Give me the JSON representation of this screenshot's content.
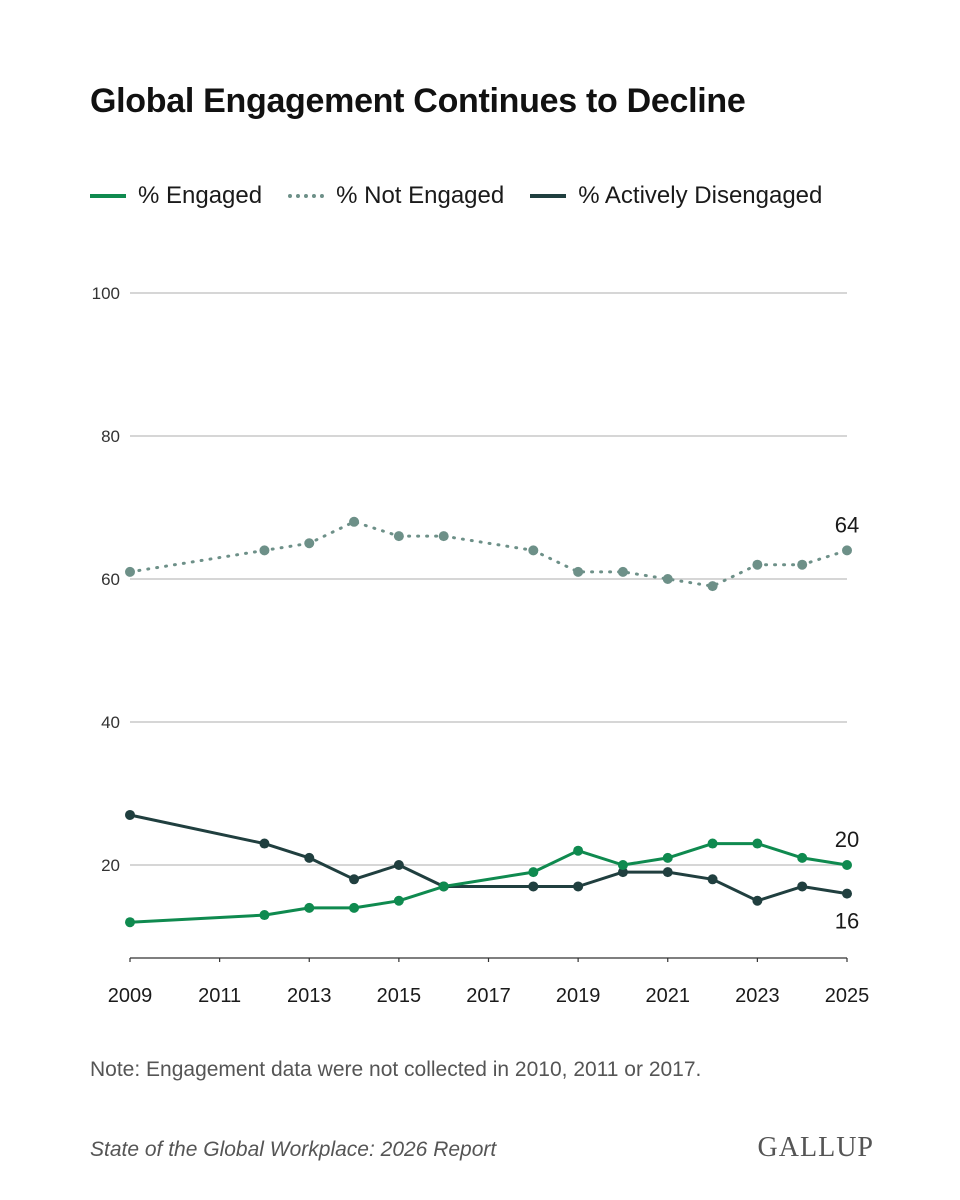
{
  "title": "Global Engagement Continues to Decline",
  "legend": [
    {
      "label": "% Engaged",
      "color": "#0f8a4f",
      "style": "solid"
    },
    {
      "label": "% Not Engaged",
      "color": "#6d9088",
      "style": "dotted"
    },
    {
      "label": "% Actively Disengaged",
      "color": "#203f3f",
      "style": "solid"
    }
  ],
  "note": "Note: Engagement data were not collected in 2010, 2011 or 2017.",
  "source": "State of the Global Workplace: 2026 Report",
  "logo": "GALLUP",
  "chart_data": {
    "type": "line",
    "title": "Global Engagement Continues to Decline",
    "xlabel": "",
    "ylabel": "",
    "xlim": [
      2009,
      2025
    ],
    "ylim": [
      13,
      100
    ],
    "yticks": [
      20,
      40,
      60,
      80,
      100
    ],
    "xticks": [
      2009,
      2011,
      2013,
      2015,
      2017,
      2019,
      2021,
      2023,
      2025
    ],
    "grid": true,
    "legend_position": "top",
    "series": [
      {
        "name": "% Engaged",
        "color": "#0f8a4f",
        "dashed": false,
        "x": [
          2009,
          2012,
          2013,
          2014,
          2015,
          2016,
          2018,
          2019,
          2020,
          2021,
          2022,
          2023,
          2024,
          2025
        ],
        "y": [
          12,
          13,
          14,
          14,
          15,
          17,
          19,
          22,
          20,
          21,
          23,
          23,
          21,
          20
        ],
        "end_label": "20"
      },
      {
        "name": "% Not Engaged",
        "color": "#6d9088",
        "dashed": true,
        "x": [
          2009,
          2012,
          2013,
          2014,
          2015,
          2016,
          2018,
          2019,
          2020,
          2021,
          2022,
          2023,
          2024,
          2025
        ],
        "y": [
          61,
          64,
          65,
          68,
          66,
          66,
          64,
          61,
          61,
          60,
          59,
          62,
          62,
          64
        ],
        "end_label": "64"
      },
      {
        "name": "% Actively Disengaged",
        "color": "#203f3f",
        "dashed": false,
        "x": [
          2009,
          2012,
          2013,
          2014,
          2015,
          2016,
          2018,
          2019,
          2020,
          2021,
          2022,
          2023,
          2024,
          2025
        ],
        "y": [
          27,
          23,
          21,
          18,
          20,
          17,
          17,
          17,
          19,
          19,
          18,
          15,
          17,
          16
        ],
        "end_label": "16"
      }
    ]
  }
}
